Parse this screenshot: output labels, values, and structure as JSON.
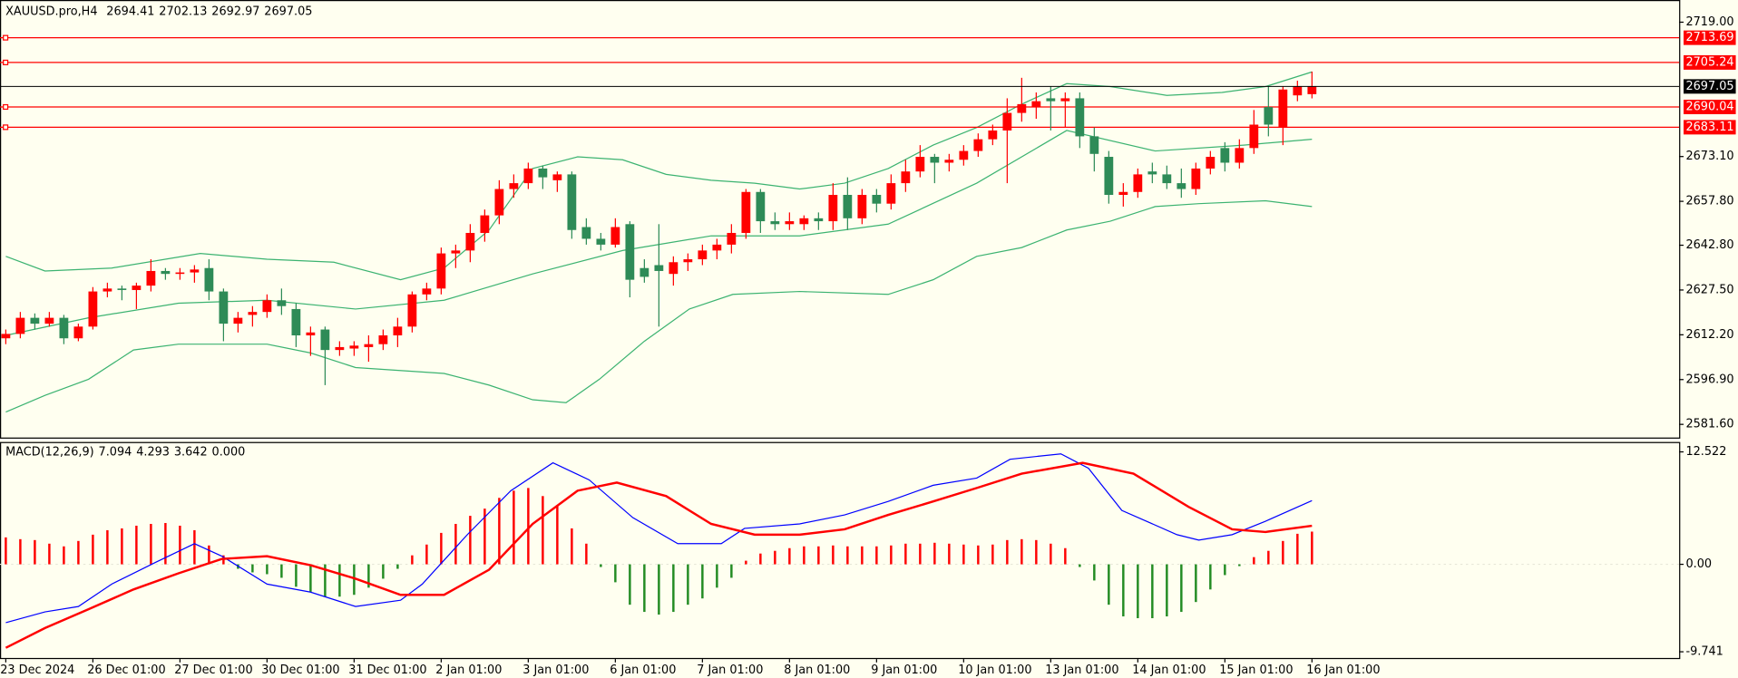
{
  "chart_data": [
    {
      "type": "candlestick",
      "title": "XAUUSD.pro,H4",
      "categories": [
        "23 Dec 2024",
        null,
        null,
        null,
        null,
        null,
        "26 Dec 01:00",
        null,
        null,
        null,
        null,
        null,
        "27 Dec 01:00",
        null,
        null,
        null,
        null,
        null,
        "30 Dec 01:00",
        null,
        null,
        null,
        null,
        null,
        "31 Dec 01:00",
        null,
        null,
        null,
        null,
        null,
        "2 Jan 01:00",
        null,
        null,
        null,
        null,
        null,
        "3 Jan 01:00",
        null,
        null,
        null,
        null,
        null,
        "6 Jan 01:00",
        null,
        null,
        null,
        null,
        null,
        "7 Jan 01:00",
        null,
        null,
        null,
        null,
        null,
        "8 Jan 01:00",
        null,
        null,
        null,
        null,
        null,
        "9 Jan 01:00",
        null,
        null,
        null,
        null,
        null,
        "10 Jan 01:00",
        null,
        null,
        null,
        null,
        null,
        "13 Jan 01:00",
        null,
        null,
        null,
        null,
        null,
        "14 Jan 01:00",
        null,
        null,
        null,
        null,
        null,
        "15 Jan 01:00",
        null,
        null,
        null,
        null,
        null,
        "16 Jan 01:00"
      ],
      "open": [
        2611,
        2612.5,
        2618,
        2616,
        2618,
        2611,
        2615,
        2627,
        2628,
        2627.5,
        2629,
        2634,
        2633,
        2633.5,
        2635,
        2627,
        2616,
        2619,
        2620,
        2624,
        2621,
        2612,
        2614,
        2607,
        2607.5,
        2608,
        2609,
        2612,
        2615,
        2626,
        2628,
        2640,
        2641,
        2647,
        2653,
        2662,
        2664,
        2669,
        2665,
        2667,
        2649,
        2645,
        2643,
        2650,
        2635,
        2636,
        2633,
        2637,
        2638,
        2641,
        2643,
        2647,
        2661,
        2651,
        2650,
        2650,
        2652,
        2651,
        2660,
        2652,
        2660,
        2657,
        2664,
        2668,
        2673,
        2671,
        2672,
        2675,
        2679,
        2682,
        2688,
        2690,
        2693,
        2692,
        2693,
        2680,
        2673,
        2660,
        2661,
        2668,
        2667,
        2664,
        2662,
        2669,
        2676,
        2671,
        2676,
        2690,
        2683,
        2694,
        2694.41
      ],
      "high": [
        2614,
        2620,
        2619.5,
        2620,
        2619,
        2616,
        2628.5,
        2630,
        2629,
        2630,
        2638,
        2635,
        2635,
        2636,
        2638,
        2628,
        2620,
        2622,
        2626,
        2628,
        2623,
        2615,
        2615,
        2610,
        2610,
        2612,
        2614,
        2618,
        2627,
        2630,
        2642,
        2643,
        2650,
        2655,
        2665,
        2667,
        2671,
        2670,
        2668,
        2668,
        2652,
        2647,
        2652,
        2651,
        2638,
        2650,
        2639,
        2640,
        2643,
        2645,
        2650,
        2662,
        2662,
        2654,
        2654,
        2653,
        2654,
        2664,
        2666,
        2662,
        2662,
        2667,
        2672,
        2677,
        2674,
        2674,
        2677,
        2681,
        2684,
        2693,
        2700,
        2695,
        2697,
        2695,
        2695,
        2683,
        2675,
        2664,
        2669,
        2671,
        2670,
        2669,
        2671,
        2675,
        2678,
        2679,
        2689,
        2697,
        2697,
        2699,
        2702.13
      ],
      "low": [
        2609,
        2611,
        2614,
        2615,
        2609,
        2610,
        2614,
        2625,
        2624,
        2621,
        2627,
        2631,
        2631,
        2630,
        2624,
        2610,
        2613,
        2615,
        2618,
        2619,
        2608,
        2605,
        2595,
        2605,
        2605,
        2603,
        2607,
        2608,
        2613,
        2624,
        2626,
        2635,
        2637,
        2644,
        2650,
        2659,
        2662,
        2662,
        2661,
        2645,
        2643,
        2641,
        2642,
        2625,
        2630,
        2615,
        2629,
        2634,
        2636,
        2638,
        2640,
        2645,
        2647,
        2648,
        2648,
        2648,
        2648,
        2648,
        2648,
        2650,
        2654,
        2655,
        2661,
        2666,
        2664,
        2668,
        2670,
        2673,
        2677,
        2664,
        2685,
        2686,
        2682,
        2683,
        2676,
        2668,
        2657,
        2656,
        2659,
        2664,
        2662,
        2659,
        2660,
        2667,
        2668,
        2669,
        2674,
        2680,
        2677,
        2692,
        2692.97
      ],
      "close": [
        2612.5,
        2618,
        2616,
        2618,
        2611,
        2615,
        2627,
        2628,
        2627.5,
        2629,
        2634,
        2633,
        2633.5,
        2634.5,
        2627,
        2616,
        2618,
        2620,
        2624,
        2622,
        2612,
        2613,
        2607,
        2608,
        2608.5,
        2609,
        2612,
        2615,
        2626,
        2628,
        2640,
        2641,
        2647,
        2653,
        2662,
        2664,
        2669,
        2666,
        2667,
        2648,
        2645,
        2643,
        2649,
        2631,
        2632,
        2634,
        2637,
        2638,
        2641,
        2643,
        2647,
        2661,
        2651,
        2650,
        2651,
        2652,
        2651,
        2660,
        2652,
        2660,
        2657,
        2664,
        2668,
        2673,
        2671,
        2672,
        2675,
        2679,
        2682,
        2688,
        2691,
        2692,
        2692,
        2693,
        2680,
        2674,
        2660,
        2661,
        2667,
        2667,
        2664,
        2662,
        2669,
        2673,
        2671,
        2676,
        2684,
        2684,
        2696,
        2697,
        2697.05
      ],
      "up_color": "#ff0000",
      "down_color": "#2e8b57",
      "bands": {
        "color": "#3cb371",
        "series": [
          {
            "x": [
              0,
              2.7,
              7.3,
              13.4,
              18,
              22.6,
              27.2,
              30.2,
              33.3,
              36.3,
              39.4,
              42.5,
              45.5,
              48.6,
              51.6,
              54.7,
              57.8,
              60.8,
              63.9,
              66.9,
              70,
              73.1,
              76.1,
              80,
              83.8,
              86.8,
              90
            ],
            "values": [
              2639,
              2634,
              2635,
              2640,
              2638,
              2637,
              2631,
              2635,
              2648,
              2669,
              2673,
              2672,
              2667,
              2665,
              2664,
              2662,
              2664,
              2669,
              2677,
              2683,
              2691,
              2698,
              2697,
              2694,
              2695,
              2697,
              2702
            ]
          },
          {
            "x": [
              0,
              5.7,
              11.9,
              18,
              24.1,
              30.2,
              36.3,
              42.5,
              48.6,
              54.7,
              60.8,
              66.9,
              73.1,
              79.2,
              85.3,
              90
            ],
            "values": [
              2612,
              2618,
              2623,
              2624,
              2621,
              2624,
              2633,
              2641,
              2646,
              2646,
              2650,
              2664,
              2682,
              2675,
              2677,
              2679
            ]
          },
          {
            "x": [
              0,
              2.7,
              5.7,
              8.8,
              11.9,
              18,
              21,
              24.1,
              30.2,
              33.3,
              36.3,
              38.6,
              40.9,
              44,
              47.1,
              50.1,
              54.7,
              60.8,
              63.9,
              66.9,
              70,
              73.1,
              76.1,
              79.2,
              82.2,
              86.8,
              90
            ],
            "values": [
              2585.8,
              2591.5,
              2597,
              2607,
              2609,
              2609,
              2606,
              2601,
              2599,
              2595,
              2590,
              2589,
              2597,
              2610,
              2621,
              2626,
              2627,
              2626,
              2631,
              2639,
              2642,
              2648,
              2651,
              2656,
              2657,
              2658,
              2656
            ]
          }
        ]
      },
      "price_lines": {
        "color": "#ff0000",
        "values": [
          2713.69,
          2705.24,
          2690.04,
          2683.11
        ]
      },
      "current_line_color": "#000000",
      "xlim": [
        -0.4,
        115.3
      ],
      "ylim": [
        2577.1,
        2726.2
      ],
      "yticks": [
        {
          "value": 2719,
          "label": "2719.00"
        },
        {
          "value": 2673.1,
          "label": "2673.10"
        },
        {
          "value": 2657.8,
          "label": "2657.80"
        },
        {
          "value": 2642.8,
          "label": "2642.80"
        },
        {
          "value": 2627.5,
          "label": "2627.50"
        },
        {
          "value": 2612.2,
          "label": "2612.20"
        },
        {
          "value": 2596.9,
          "label": "2596.90"
        },
        {
          "value": 2581.6,
          "label": "2581.60"
        }
      ]
    },
    {
      "type": "macd",
      "title": "MACD(12,26,9)",
      "histogram": {
        "up_color": "#ff0000",
        "down_color": "#228b22",
        "values": [
          3.0,
          2.8,
          2.7,
          2.3,
          2.0,
          2.6,
          3.3,
          3.8,
          4.0,
          4.3,
          4.5,
          4.6,
          4.3,
          3.8,
          2.1,
          1.0,
          -0.5,
          -0.9,
          -1.1,
          -1.5,
          -2.5,
          -3.1,
          -3.6,
          -3.6,
          -3.4,
          -2.6,
          -1.6,
          -0.5,
          1.0,
          2.2,
          3.5,
          4.5,
          5.4,
          6.2,
          7.4,
          8.2,
          8.5,
          7.6,
          6.5,
          4.0,
          2.3,
          -0.3,
          -2.0,
          -4.5,
          -5.3,
          -5.6,
          -5.3,
          -4.5,
          -3.8,
          -2.6,
          -1.5,
          0.4,
          1.2,
          1.5,
          1.8,
          2.0,
          2.0,
          2.1,
          2.0,
          2.0,
          2.0,
          2.1,
          2.3,
          2.3,
          2.4,
          2.3,
          2.2,
          2.1,
          2.2,
          2.7,
          2.8,
          2.7,
          2.3,
          1.8,
          -0.3,
          -1.8,
          -4.5,
          -5.8,
          -6.0,
          -6.0,
          -5.8,
          -5.3,
          -4.2,
          -2.8,
          -1.2,
          -0.2,
          0.8,
          1.5,
          2.6,
          3.4,
          3.642
        ]
      },
      "series": [
        {
          "color": "#0000ff",
          "x": [
            0,
            2.7,
            5,
            7.3,
            10.3,
            13,
            14.9,
            18,
            21,
            24.1,
            27.2,
            28.7,
            31.8,
            34.8,
            37.7,
            40.2,
            43.2,
            46.3,
            49.3,
            50.9,
            54.7,
            57.8,
            60.8,
            63.9,
            66.9,
            69.2,
            72.7,
            74.6,
            76.9,
            80.7,
            82.2,
            84.5,
            86.8,
            90
          ],
          "values": [
            -6.5,
            -5.3,
            -4.7,
            -2.2,
            0.2,
            2.3,
            0.9,
            -2.2,
            -3.1,
            -4.7,
            -4.0,
            -2.2,
            3.3,
            8.2,
            11.3,
            9.4,
            5.2,
            2.3,
            2.3,
            4.0,
            4.5,
            5.5,
            7.0,
            8.8,
            9.6,
            11.7,
            12.3,
            10.7,
            6.0,
            3.3,
            2.7,
            3.3,
            4.8,
            7.094
          ]
        },
        {
          "color": "#ff0000",
          "x": [
            0,
            2.7,
            5.7,
            8.8,
            11.9,
            14.9,
            18,
            21,
            24.1,
            27.2,
            30.2,
            33.3,
            36.3,
            39.4,
            42.1,
            45.5,
            48.6,
            51.6,
            54.7,
            57.8,
            60.8,
            63.9,
            66.9,
            70,
            74.2,
            77.7,
            81.5,
            84.5,
            86.8,
            90
          ],
          "values": [
            -9.3,
            -7.1,
            -5.0,
            -2.8,
            -1.0,
            0.6,
            0.9,
            -0.1,
            -1.6,
            -3.4,
            -3.4,
            -0.6,
            4.5,
            8.2,
            9.1,
            7.6,
            4.5,
            3.3,
            3.3,
            3.9,
            5.5,
            7.0,
            8.5,
            10.1,
            11.3,
            10.1,
            6.4,
            3.9,
            3.6,
            4.293
          ]
        }
      ],
      "levels": [
        {
          "value": 0,
          "label": "0.000"
        }
      ],
      "xlim": [
        -0.4,
        115.3
      ],
      "ylim": [
        -10.43,
        13.5
      ],
      "yticks": [
        12.522,
        {
          "value": 0,
          "label": "0.00"
        },
        -9.741
      ]
    }
  ]
}
